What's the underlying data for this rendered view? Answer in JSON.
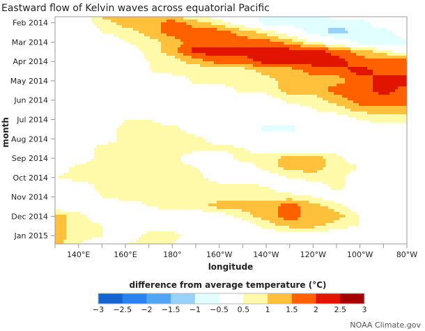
{
  "chart_data": {
    "type": "heatmap",
    "title": "Eastward flow of Kelvin waves across equatorial Pacific",
    "xlabel": "longitude",
    "ylabel": "month",
    "x_ticks_deg_east": [
      140,
      160,
      180,
      200,
      220,
      240,
      260,
      280
    ],
    "x_tick_labels": [
      "140°E",
      "160°E",
      "180°",
      "160°W",
      "140°W",
      "120°W",
      "100°W",
      "80°W"
    ],
    "xlim_deg_east": [
      130,
      280
    ],
    "y_ticks": [
      "2014-02-01",
      "2014-03-01",
      "2014-04-01",
      "2014-05-01",
      "2014-06-01",
      "2014-07-01",
      "2014-08-01",
      "2014-09-01",
      "2014-10-01",
      "2014-11-01",
      "2014-12-01",
      "2015-01-01"
    ],
    "y_tick_labels": [
      "Feb 2014",
      "Mar 2014",
      "Apr 2014",
      "May 2014",
      "Jun 2014",
      "Jul 2014",
      "Aug 2014",
      "Sep 2014",
      "Oct 2014",
      "Nov 2014",
      "Dec 2014",
      "Jan 2015"
    ],
    "ylim": [
      "2014-01-22",
      "2015-01-14"
    ],
    "y_direction": "down",
    "grid": false,
    "lon_deg_east": [
      130,
      140,
      150,
      160,
      170,
      180,
      190,
      200,
      210,
      220,
      230,
      240,
      250,
      260,
      270,
      280
    ],
    "times": [
      "2014-01-16",
      "2014-02-01",
      "2014-02-15",
      "2014-03-01",
      "2014-03-15",
      "2014-04-01",
      "2014-04-15",
      "2014-05-01",
      "2014-05-15",
      "2014-06-01",
      "2014-06-15",
      "2014-07-01",
      "2014-07-15",
      "2014-08-01",
      "2014-08-15",
      "2014-09-01",
      "2014-09-15",
      "2014-10-01",
      "2014-10-15",
      "2014-11-01",
      "2014-11-15",
      "2014-12-01",
      "2014-12-15",
      "2015-01-01",
      "2015-01-15"
    ],
    "values": [
      [
        0.75,
        0,
        1.25,
        1.25,
        1.25,
        0.75,
        0,
        0,
        0,
        -0.75,
        -0.75,
        -0.75,
        0,
        0,
        0,
        0.5
      ],
      [
        0,
        0,
        0.75,
        1.25,
        1.25,
        1.75,
        1.25,
        0.75,
        0,
        -0.75,
        -0.75,
        -0.75,
        -0.75,
        -0.75,
        0,
        0
      ],
      [
        0,
        0,
        0.5,
        0.75,
        1.25,
        1.75,
        1.75,
        1.75,
        1.25,
        0.75,
        0,
        -0.75,
        -1.25,
        -0.75,
        -0.75,
        0
      ],
      [
        0,
        0,
        0,
        0.5,
        0.75,
        1.25,
        1.75,
        1.75,
        1.75,
        1.75,
        1.25,
        0.5,
        0,
        -0.75,
        -0.75,
        -0.75
      ],
      [
        0,
        0,
        0,
        0,
        0.75,
        1.25,
        2.25,
        2.25,
        2.25,
        2.25,
        2.25,
        2.25,
        1.75,
        1.25,
        0.75,
        0
      ],
      [
        -0.5,
        0,
        0,
        0,
        0.5,
        0.75,
        1.25,
        1.75,
        1.75,
        2.25,
        2.25,
        2.25,
        2.25,
        1.75,
        1.75,
        1.75
      ],
      [
        0,
        0,
        0,
        0,
        0.5,
        0.75,
        0.5,
        0.75,
        0.75,
        1.25,
        1.25,
        1.75,
        1.75,
        2.25,
        1.75,
        1.75
      ],
      [
        0,
        0,
        0,
        0,
        0,
        0,
        0.75,
        0.75,
        0.75,
        0.75,
        1.25,
        1.25,
        1.25,
        1.75,
        2.25,
        2.25
      ],
      [
        0,
        0,
        0,
        0,
        0,
        0,
        0,
        0,
        0.75,
        0.75,
        1.25,
        1.25,
        1.75,
        1.75,
        2.25,
        1.75
      ],
      [
        0,
        0,
        0,
        0,
        0,
        0,
        0,
        0,
        0,
        0,
        0.75,
        0.75,
        1.25,
        1.75,
        1.75,
        1.75
      ],
      [
        0,
        0,
        0,
        0,
        0,
        0,
        0,
        0,
        0,
        0,
        0,
        0.5,
        0.75,
        1.25,
        1.25,
        1.25
      ],
      [
        0,
        0,
        0,
        0.5,
        0.5,
        0,
        0,
        0,
        0,
        0,
        0,
        0,
        0,
        0.5,
        0.75,
        0.75
      ],
      [
        0,
        0,
        0,
        0.75,
        0.75,
        0.75,
        0,
        0,
        0,
        -0.75,
        -0.75,
        0,
        0,
        0,
        0,
        0
      ],
      [
        0.5,
        0,
        0,
        0.75,
        0.75,
        1.0,
        0.75,
        0,
        0,
        0,
        0,
        0,
        0,
        0,
        0,
        0
      ],
      [
        0,
        0,
        0.75,
        0.75,
        0.75,
        0.75,
        0.75,
        0.75,
        0.5,
        0,
        0,
        0,
        0,
        0,
        0,
        0
      ],
      [
        0,
        0,
        0.75,
        0.75,
        0.75,
        0.75,
        0,
        0,
        0.75,
        0.75,
        1.25,
        1.25,
        0.75,
        0,
        0,
        0
      ],
      [
        0,
        0.75,
        0.75,
        0.75,
        0.75,
        0.75,
        0.5,
        0,
        0,
        0.75,
        1.25,
        1.25,
        0.75,
        0.5,
        0,
        0
      ],
      [
        0.5,
        0.75,
        0.75,
        0.75,
        0.75,
        0.75,
        0.75,
        0,
        0,
        0,
        0.5,
        0.75,
        0.75,
        0,
        0,
        0
      ],
      [
        0,
        0,
        0.75,
        0.75,
        0.75,
        0.75,
        1.0,
        0.75,
        0.75,
        0.5,
        0,
        0,
        0.75,
        0,
        0,
        0
      ],
      [
        0,
        0,
        0.5,
        0.75,
        0.75,
        0.75,
        0.75,
        0.75,
        0.75,
        0.75,
        0.75,
        0.5,
        0,
        0,
        0,
        0
      ],
      [
        0,
        0,
        0,
        0,
        0.5,
        0.75,
        0.75,
        1.25,
        1.25,
        1.25,
        1.75,
        1.25,
        0.75,
        0,
        0,
        0
      ],
      [
        1.25,
        0.75,
        0,
        0,
        0,
        0,
        0,
        0,
        0.75,
        1.25,
        1.75,
        1.25,
        1.25,
        0.5,
        0,
        0
      ],
      [
        1.25,
        0.75,
        0.5,
        0,
        0,
        0,
        0,
        0,
        0,
        0.75,
        1.25,
        1.25,
        0.75,
        0.5,
        0,
        0
      ],
      [
        1.25,
        0.75,
        0.5,
        0,
        0.75,
        0.75,
        0,
        0,
        0,
        0,
        0,
        0,
        0,
        0,
        0,
        0
      ],
      [
        1.25,
        0.5,
        0,
        0.5,
        0.75,
        0.5,
        0,
        0,
        0,
        0,
        0,
        0,
        0,
        0,
        0,
        0
      ]
    ],
    "colorbar": {
      "title": "difference from average temperature (°C)",
      "levels": [
        -3,
        -2.5,
        -2,
        -1.5,
        -1,
        -0.5,
        0.5,
        1,
        1.5,
        2,
        2.5,
        3
      ],
      "level_labels": [
        "−3",
        "−2.5",
        "−2",
        "−1.5",
        "−1",
        "−0.5",
        "0.5",
        "1",
        "1.5",
        "2",
        "2.5",
        "3"
      ],
      "colors": [
        "#1464d2",
        "#2882f0",
        "#50a5f5",
        "#96d2fa",
        "#e1ffff",
        "#ffffff",
        "#fffaaa",
        "#ffc03c",
        "#ff6000",
        "#e11400",
        "#a50000"
      ]
    }
  },
  "credit": "NOAA Climate.gov"
}
